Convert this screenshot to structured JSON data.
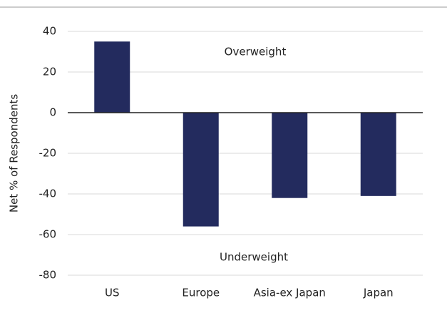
{
  "chart_data": {
    "type": "bar",
    "categories": [
      "US",
      "Europe",
      "Asia-ex Japan",
      "Japan"
    ],
    "values": [
      35,
      -56,
      -42,
      -41
    ],
    "color": "#232b5e",
    "ylabel": "Net % of Respondents",
    "annotations": [
      "Overweight",
      "Underweight"
    ],
    "ylim": [
      -80,
      40
    ],
    "yticks": [
      -80,
      -60,
      -40,
      -20,
      0,
      20,
      40
    ],
    "grid": true
  }
}
